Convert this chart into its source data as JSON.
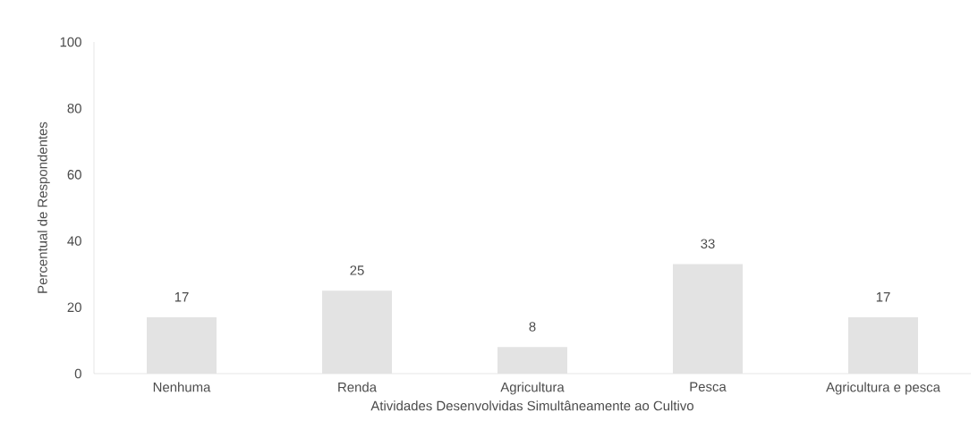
{
  "chart_data": {
    "type": "bar",
    "xlabel": "Atividades Desenvolvidas  Simultâneamente  ao Cultivo",
    "ylabel": "Percentual de Respondentes",
    "categories": [
      "Nenhuma",
      "Renda",
      "Agricultura",
      "Pesca",
      "Agricultura e pesca"
    ],
    "values": [
      17,
      25,
      8,
      33,
      17
    ],
    "color": "#e3e3e3",
    "ylim": [
      0,
      100
    ],
    "yticks": [
      0,
      20,
      40,
      60,
      80,
      100
    ],
    "data_labels": true
  }
}
